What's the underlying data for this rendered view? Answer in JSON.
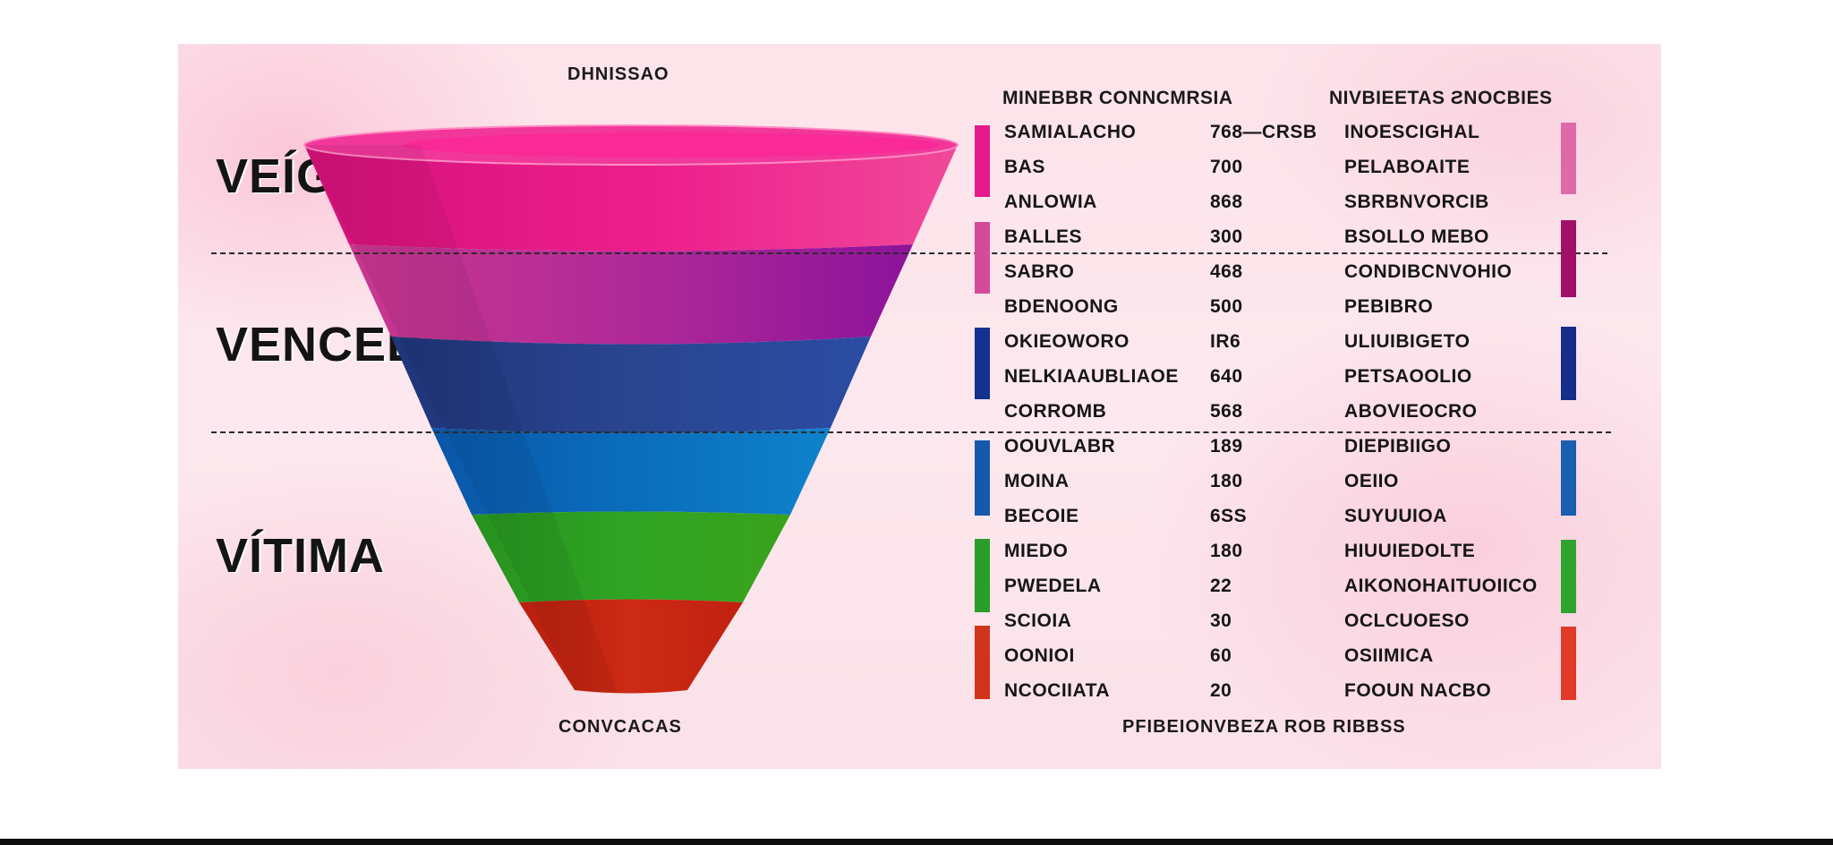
{
  "funnel": {
    "top_caption": "DHNISSAO",
    "bottom_caption": "CONVCACAS",
    "stages": [
      {
        "label": "VEÍGULO"
      },
      {
        "label": "VENCEDOR"
      },
      {
        "label": "VÍTIMA"
      }
    ],
    "band_colors": [
      "#e8168a",
      "#b0279a",
      "#26428f",
      "#0a6fbd",
      "#2f9e22",
      "#c02414"
    ]
  },
  "table": {
    "header_left": "MINEBBR CONNCMRSIA",
    "header_right": "NIVBIEETAS ƧNOCBIES",
    "footer": "PFIBEIONVBEZA ROB RIBBSS",
    "rows": [
      {
        "name": "SAMIALACHO",
        "value": "768—CRSB",
        "right": "INOESCIGHAL"
      },
      {
        "name": "BAS",
        "value": "700",
        "right": "PELABOAITE"
      },
      {
        "name": "ANLOWIA",
        "value": "868",
        "right": "SBRBNVORCIB"
      },
      {
        "name": "BALLES",
        "value": "300",
        "right": "BSOLLO MEBO"
      },
      {
        "name": "SABRO",
        "value": "468",
        "right": "CONDIBCNVOHIO"
      },
      {
        "name": "BDENOONG",
        "value": "500",
        "right": "PEBIBRO"
      },
      {
        "name": "OKIEOWORO",
        "value": "IR6",
        "right": "ULIUIBIGETO"
      },
      {
        "name": "NELKIAAUBLIAOE",
        "value": "640",
        "right": "PETSAOOLIO"
      },
      {
        "name": "CORROMB",
        "value": "568",
        "right": "ABOVIEOCRO"
      },
      {
        "name": "OOUVLABR",
        "value": "189",
        "right": "DIEPIBIIGO"
      },
      {
        "name": "MOINA",
        "value": "180",
        "right": "OEIIO"
      },
      {
        "name": "BECOIE",
        "value": "6SS",
        "right": "SUYUUIOA"
      },
      {
        "name": "MIEDO",
        "value": "180",
        "right": "HIUUIEDOLTE"
      },
      {
        "name": "PWEDELA",
        "value": "22",
        "right": "AIKONOHAITUOIICO"
      },
      {
        "name": "SCIOIA",
        "value": "30",
        "right": "OCLCUOESO"
      },
      {
        "name": "OONIOI",
        "value": "60",
        "right": "OSIIMICA"
      },
      {
        "name": "NCOCIIATA",
        "value": "20",
        "right": "FOOUN NACBO"
      }
    ],
    "markers": [
      {
        "side": "left",
        "color": "#e6198a"
      },
      {
        "side": "right",
        "color": "#de6aa8"
      },
      {
        "side": "left",
        "color": "#d64a9c"
      },
      {
        "side": "right",
        "color": "#a20f68"
      },
      {
        "side": "left",
        "color": "#14318f"
      },
      {
        "side": "right",
        "color": "#162d8a"
      },
      {
        "side": "left",
        "color": "#1559ad"
      },
      {
        "side": "right",
        "color": "#1a5fb0"
      },
      {
        "side": "left",
        "color": "#2a9e2a"
      },
      {
        "side": "right",
        "color": "#2fa330"
      },
      {
        "side": "left",
        "color": "#d0351c"
      },
      {
        "side": "right",
        "color": "#e03a28"
      }
    ]
  }
}
